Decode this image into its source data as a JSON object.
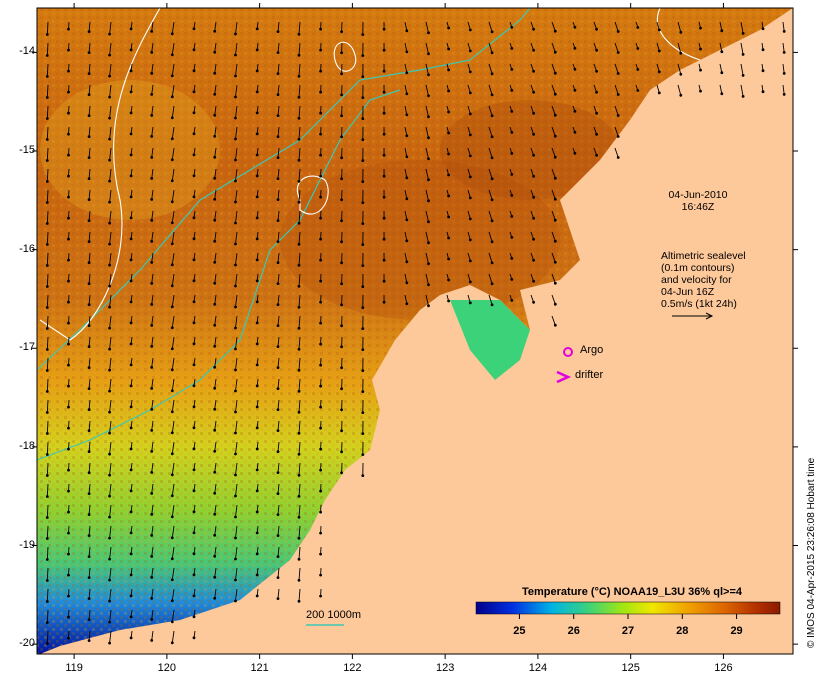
{
  "map": {
    "x_ticks": [
      "119",
      "120",
      "121",
      "122",
      "123",
      "124",
      "125",
      "126"
    ],
    "y_ticks": [
      "-14",
      "-15",
      "-16",
      "-17",
      "-18",
      "-19",
      "-20"
    ],
    "x_range": [
      118.6,
      126.75
    ],
    "y_range": [
      -20.1,
      -13.55
    ]
  },
  "annotations": {
    "date_line1": "04-Jun-2010",
    "date_line2": "16:46Z",
    "alt_line1": "Altimetric sealevel",
    "alt_line2": "(0.1m contours)",
    "alt_line3": "and velocity for",
    "alt_line4": "04-Jun 16Z",
    "alt_line5": "0.5m/s (1kt 24h)",
    "argo": "Argo",
    "drifter": "drifter",
    "depth_contours": "200  1000m"
  },
  "colorbar": {
    "title": "Temperature (°C) NOAA19_L3U 36% ql>=4",
    "ticks": [
      "25",
      "26",
      "27",
      "28",
      "29"
    ],
    "range": [
      24.2,
      29.8
    ]
  },
  "credit": "© IMOS 04-Apr-2015 23:26:08 Hobart time",
  "colors": {
    "land": "#fdc89a",
    "cold": "#00008b",
    "warm": "#8b1a00",
    "argo": "#e000e0",
    "isobath": "#3cc8b4",
    "sealevel_contour": "#ffffff"
  }
}
